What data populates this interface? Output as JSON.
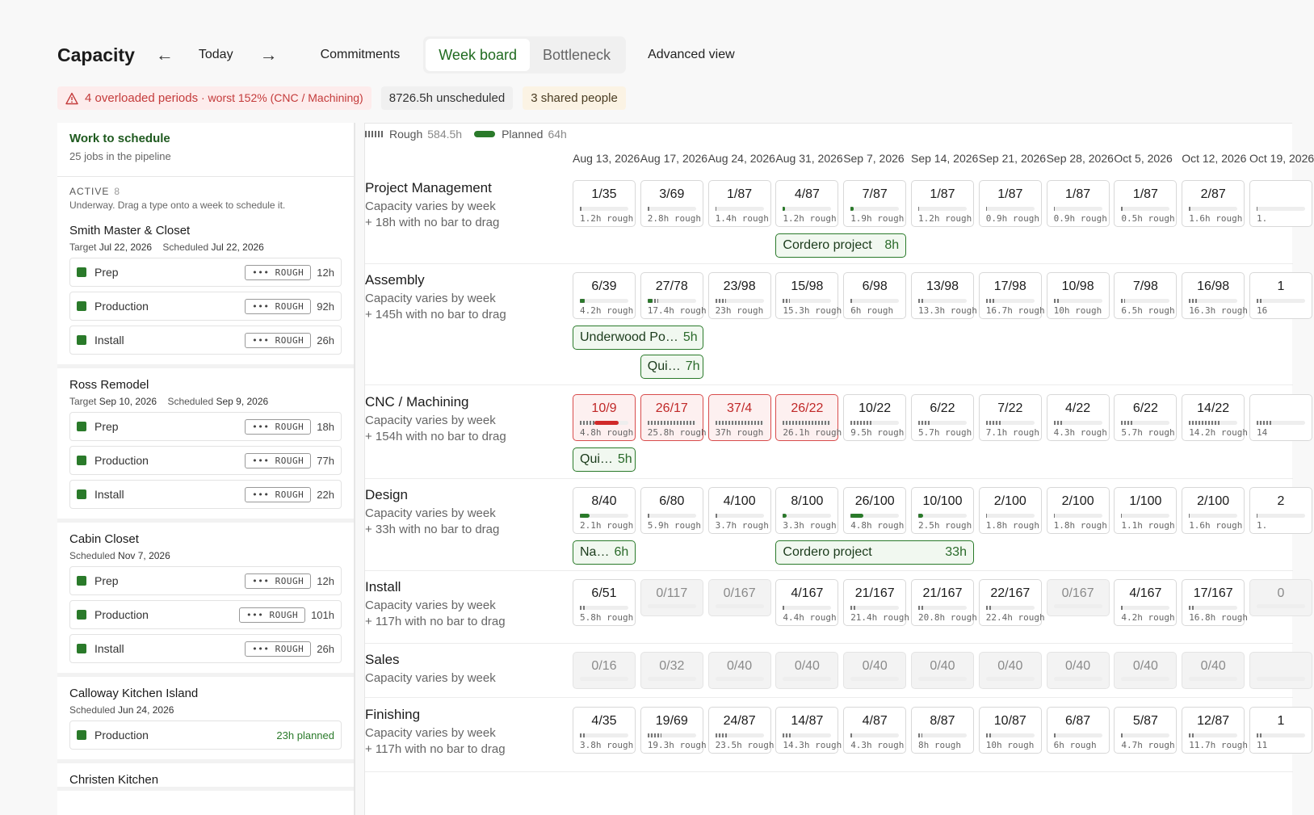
{
  "header": {
    "title": "Capacity",
    "today": "Today",
    "commitments": "Commitments",
    "tabs": [
      "Week board",
      "Bottleneck"
    ],
    "advanced": "Advanced view"
  },
  "alerts": {
    "overloaded": "4 overloaded periods",
    "worst": " · worst 152% (CNC / Machining)",
    "unscheduled": "8726.5h unscheduled",
    "shared": "3 shared people"
  },
  "sidebar": {
    "title": "Work to schedule",
    "subtitle": "25 jobs in the pipeline",
    "section_label": "ACTIVE",
    "section_count": "8",
    "section_hint": "Underway. Drag a type onto a week to schedule it.",
    "jobs": [
      {
        "name": "Smith Master & Closet",
        "target_label": "Target",
        "target": "Jul 22, 2026",
        "sched_label": "Scheduled",
        "scheduled": "Jul 22, 2026",
        "tasks": [
          {
            "name": "Prep",
            "tag": "ROUGH",
            "hours": "12h"
          },
          {
            "name": "Production",
            "tag": "ROUGH",
            "hours": "92h"
          },
          {
            "name": "Install",
            "tag": "ROUGH",
            "hours": "26h"
          }
        ]
      },
      {
        "name": "Ross Remodel",
        "target_label": "Target",
        "target": "Sep 10, 2026",
        "sched_label": "Scheduled",
        "scheduled": "Sep 9, 2026",
        "tasks": [
          {
            "name": "Prep",
            "tag": "ROUGH",
            "hours": "18h"
          },
          {
            "name": "Production",
            "tag": "ROUGH",
            "hours": "77h"
          },
          {
            "name": "Install",
            "tag": "ROUGH",
            "hours": "22h"
          }
        ]
      },
      {
        "name": "Cabin Closet",
        "sched_label": "Scheduled",
        "scheduled": "Nov 7, 2026",
        "tasks": [
          {
            "name": "Prep",
            "tag": "ROUGH",
            "hours": "12h"
          },
          {
            "name": "Production",
            "tag": "ROUGH",
            "hours": "101h"
          },
          {
            "name": "Install",
            "tag": "ROUGH",
            "hours": "26h"
          }
        ]
      },
      {
        "name": "Calloway Kitchen Island",
        "sched_label": "Scheduled",
        "scheduled": "Jun 24, 2026",
        "tasks": [
          {
            "name": "Production",
            "planned": "23h planned"
          }
        ]
      },
      {
        "name": "Christen Kitchen"
      }
    ]
  },
  "legend": {
    "rough": "Rough",
    "rough_val": "584.5h",
    "planned": "Planned",
    "planned_val": "64h"
  },
  "weeks": [
    "Aug 13, 2026",
    "Aug 17, 2026",
    "Aug 24, 2026",
    "Aug 31, 2026",
    "Sep 7, 2026",
    "Sep 14, 2026",
    "Sep 21, 2026",
    "Sep 28, 2026",
    "Oct 5, 2026",
    "Oct 12, 2026",
    "Oct 19, 2026"
  ],
  "lanes": [
    {
      "name": "Project Management",
      "sub": "Capacity varies by week",
      "extra": "+ 18h with no bar to drag",
      "cells": [
        {
          "f": "1/35",
          "d": "1.2h rough",
          "r": 0.03,
          "p": 0
        },
        {
          "f": "3/69",
          "d": "2.8h rough",
          "r": 0.04,
          "p": 0
        },
        {
          "f": "1/87",
          "d": "1.4h rough",
          "r": 0.02,
          "p": 0
        },
        {
          "f": "4/87",
          "d": "1.2h rough",
          "r": 0.02,
          "p": 0.04
        },
        {
          "f": "7/87",
          "d": "1.9h rough",
          "r": 0.02,
          "p": 0.06
        },
        {
          "f": "1/87",
          "d": "1.2h rough",
          "r": 0.02,
          "p": 0
        },
        {
          "f": "1/87",
          "d": "0.9h rough",
          "r": 0.02,
          "p": 0
        },
        {
          "f": "1/87",
          "d": "0.9h rough",
          "r": 0.02,
          "p": 0
        },
        {
          "f": "1/87",
          "d": "0.5h rough",
          "r": 0.02,
          "p": 0
        },
        {
          "f": "2/87",
          "d": "1.6h rough",
          "r": 0.03,
          "p": 0
        },
        {
          "f": "",
          "d": "1.",
          "r": 0.02,
          "p": 0
        }
      ],
      "pills": [
        {
          "label": "Cordero project",
          "hours": "8h"
        }
      ]
    },
    {
      "name": "Assembly",
      "sub": "Capacity varies by week",
      "extra": "+ 145h with no bar to drag",
      "cells": [
        {
          "f": "6/39",
          "d": "4.2h rough",
          "r": 0.1,
          "p": 0.1
        },
        {
          "f": "27/78",
          "d": "17.4h rough",
          "r": 0.22,
          "p": 0.1
        },
        {
          "f": "23/98",
          "d": "23h rough",
          "r": 0.23,
          "p": 0
        },
        {
          "f": "15/98",
          "d": "15.3h rough",
          "r": 0.15,
          "p": 0
        },
        {
          "f": "6/98",
          "d": "6h rough",
          "r": 0.06,
          "p": 0
        },
        {
          "f": "13/98",
          "d": "13.3h rough",
          "r": 0.13,
          "p": 0
        },
        {
          "f": "17/98",
          "d": "16.7h rough",
          "r": 0.17,
          "p": 0
        },
        {
          "f": "10/98",
          "d": "10h rough",
          "r": 0.1,
          "p": 0
        },
        {
          "f": "7/98",
          "d": "6.5h rough",
          "r": 0.07,
          "p": 0
        },
        {
          "f": "16/98",
          "d": "16.3h rough",
          "r": 0.16,
          "p": 0
        },
        {
          "f": "1",
          "d": "16",
          "r": 0.1,
          "p": 0
        }
      ],
      "pills": [
        {
          "label": "Underwood Po…",
          "hours": "5h"
        },
        {
          "label": "Qui…",
          "hours": "7h"
        }
      ]
    },
    {
      "name": "CNC / Machining",
      "sub": "Capacity varies by week",
      "extra": "+ 154h with no bar to drag",
      "cells": [
        {
          "f": "10/9",
          "d": "4.8h rough",
          "r": 0.5,
          "p": 0.5,
          "over": true
        },
        {
          "f": "26/17",
          "d": "25.8h rough",
          "r": 1.0,
          "p": 0,
          "over": true
        },
        {
          "f": "37/4",
          "d": "37h rough",
          "r": 1.0,
          "p": 0,
          "over": true
        },
        {
          "f": "26/22",
          "d": "26.1h rough",
          "r": 1.0,
          "p": 0,
          "over": true
        },
        {
          "f": "10/22",
          "d": "9.5h rough",
          "r": 0.43,
          "p": 0
        },
        {
          "f": "6/22",
          "d": "5.7h rough",
          "r": 0.26,
          "p": 0
        },
        {
          "f": "7/22",
          "d": "7.1h rough",
          "r": 0.32,
          "p": 0
        },
        {
          "f": "4/22",
          "d": "4.3h rough",
          "r": 0.2,
          "p": 0
        },
        {
          "f": "6/22",
          "d": "5.7h rough",
          "r": 0.26,
          "p": 0
        },
        {
          "f": "14/22",
          "d": "14.2h rough",
          "r": 0.64,
          "p": 0
        },
        {
          "f": "",
          "d": "14",
          "r": 0.3,
          "p": 0
        }
      ],
      "pills": [
        {
          "label": "Qui…",
          "hours": "5h"
        }
      ]
    },
    {
      "name": "Design",
      "sub": "Capacity varies by week",
      "extra": "+ 33h with no bar to drag",
      "cells": [
        {
          "f": "8/40",
          "d": "2.1h rough",
          "r": 0.05,
          "p": 0.2
        },
        {
          "f": "6/80",
          "d": "5.9h rough",
          "r": 0.07,
          "p": 0
        },
        {
          "f": "4/100",
          "d": "3.7h rough",
          "r": 0.04,
          "p": 0
        },
        {
          "f": "8/100",
          "d": "3.3h rough",
          "r": 0.03,
          "p": 0.08
        },
        {
          "f": "26/100",
          "d": "4.8h rough",
          "r": 0.05,
          "p": 0.26
        },
        {
          "f": "10/100",
          "d": "2.5h rough",
          "r": 0.03,
          "p": 0.1
        },
        {
          "f": "2/100",
          "d": "1.8h rough",
          "r": 0.02,
          "p": 0
        },
        {
          "f": "2/100",
          "d": "1.8h rough",
          "r": 0.02,
          "p": 0
        },
        {
          "f": "1/100",
          "d": "1.1h rough",
          "r": 0.01,
          "p": 0
        },
        {
          "f": "2/100",
          "d": "1.6h rough",
          "r": 0.02,
          "p": 0
        },
        {
          "f": "2",
          "d": "1.",
          "r": 0.02,
          "p": 0
        }
      ],
      "pills": [
        {
          "label": "Na…",
          "hours": "6h"
        },
        {
          "label": "Cordero project",
          "hours": "33h"
        }
      ]
    },
    {
      "name": "Install",
      "sub": "Capacity varies by week",
      "extra": "+ 117h with no bar to drag",
      "cells": [
        {
          "f": "6/51",
          "d": "5.8h rough",
          "r": 0.11,
          "p": 0
        },
        {
          "f": "0/117",
          "empty": true
        },
        {
          "f": "0/167",
          "empty": true
        },
        {
          "f": "4/167",
          "d": "4.4h rough",
          "r": 0.03,
          "p": 0
        },
        {
          "f": "21/167",
          "d": "21.4h rough",
          "r": 0.13,
          "p": 0
        },
        {
          "f": "21/167",
          "d": "20.8h rough",
          "r": 0.12,
          "p": 0
        },
        {
          "f": "22/167",
          "d": "22.4h rough",
          "r": 0.13,
          "p": 0
        },
        {
          "f": "0/167",
          "empty": true
        },
        {
          "f": "4/167",
          "d": "4.2h rough",
          "r": 0.03,
          "p": 0
        },
        {
          "f": "17/167",
          "d": "16.8h rough",
          "r": 0.1,
          "p": 0
        },
        {
          "f": "0",
          "empty": true
        }
      ],
      "pills": []
    },
    {
      "name": "Sales",
      "sub": "Capacity varies by week",
      "cells": [
        {
          "f": "0/16",
          "empty": true
        },
        {
          "f": "0/32",
          "empty": true
        },
        {
          "f": "0/40",
          "empty": true
        },
        {
          "f": "0/40",
          "empty": true
        },
        {
          "f": "0/40",
          "empty": true
        },
        {
          "f": "0/40",
          "empty": true
        },
        {
          "f": "0/40",
          "empty": true
        },
        {
          "f": "0/40",
          "empty": true
        },
        {
          "f": "0/40",
          "empty": true
        },
        {
          "f": "0/40",
          "empty": true
        },
        {
          "f": "",
          "empty": true
        }
      ],
      "pills": []
    },
    {
      "name": "Finishing",
      "sub": "Capacity varies by week",
      "extra": "+ 117h with no bar to drag",
      "cells": [
        {
          "f": "4/35",
          "d": "3.8h rough",
          "r": 0.11,
          "p": 0
        },
        {
          "f": "19/69",
          "d": "19.3h rough",
          "r": 0.28,
          "p": 0
        },
        {
          "f": "24/87",
          "d": "23.5h rough",
          "r": 0.27,
          "p": 0
        },
        {
          "f": "14/87",
          "d": "14.3h rough",
          "r": 0.16,
          "p": 0
        },
        {
          "f": "4/87",
          "d": "4.3h rough",
          "r": 0.05,
          "p": 0
        },
        {
          "f": "8/87",
          "d": "8h rough",
          "r": 0.09,
          "p": 0
        },
        {
          "f": "10/87",
          "d": "10h rough",
          "r": 0.11,
          "p": 0
        },
        {
          "f": "6/87",
          "d": "6h rough",
          "r": 0.07,
          "p": 0
        },
        {
          "f": "5/87",
          "d": "4.7h rough",
          "r": 0.05,
          "p": 0
        },
        {
          "f": "12/87",
          "d": "11.7h rough",
          "r": 0.13,
          "p": 0
        },
        {
          "f": "1",
          "d": "11",
          "r": 0.1,
          "p": 0
        }
      ],
      "pills": []
    }
  ]
}
